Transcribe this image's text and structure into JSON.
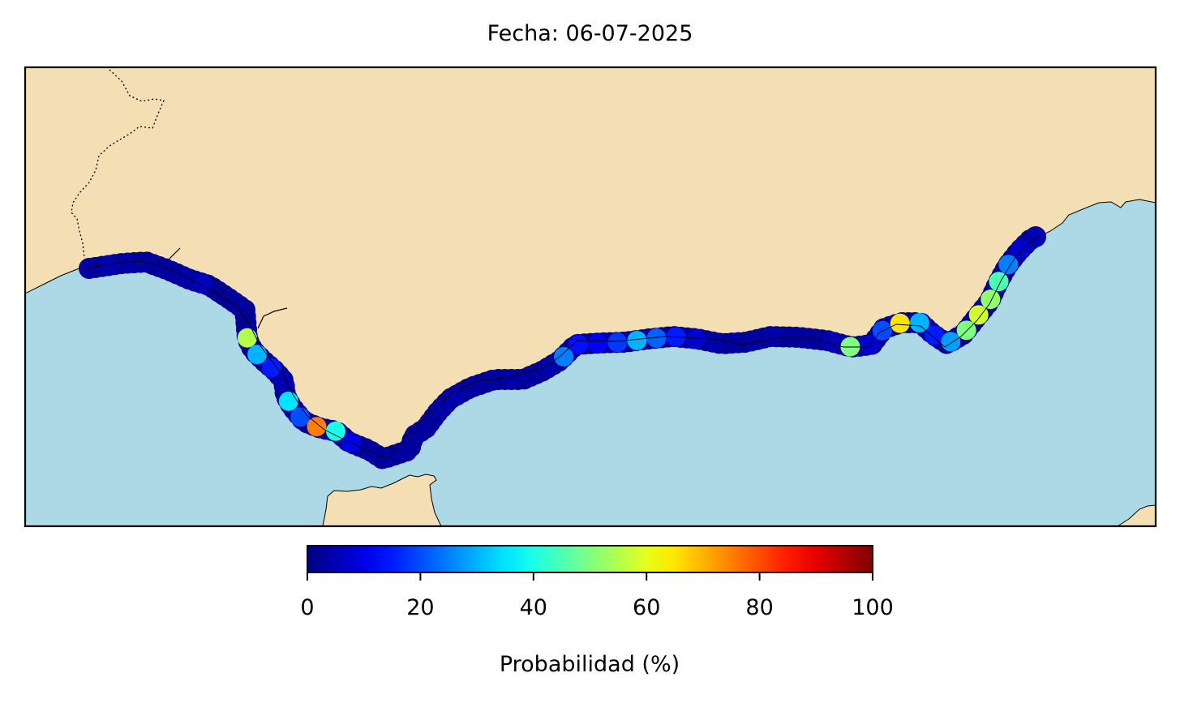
{
  "title": "Fecha: 06-07-2025",
  "colors": {
    "land": "#f4deb4",
    "sea": "#add8e6",
    "coastline": "#000000",
    "border": "#000000"
  },
  "colorbar": {
    "label": "Probabilidad (%)",
    "colormap": "jet",
    "min": 0,
    "max": 100,
    "ticks": [
      "0",
      "20",
      "40",
      "60",
      "80",
      "100"
    ]
  },
  "points": [
    {
      "id": "p1",
      "p": 3
    },
    {
      "id": "p2",
      "p": 5
    },
    {
      "id": "p3",
      "p": 4
    },
    {
      "id": "p4",
      "p": 3
    },
    {
      "id": "p5",
      "p": 3
    },
    {
      "id": "p6",
      "p": 4
    },
    {
      "id": "p7",
      "p": 6
    },
    {
      "id": "p8",
      "p": 2
    },
    {
      "id": "p9",
      "p": 3
    },
    {
      "id": "p10",
      "p": 2
    },
    {
      "id": "p11",
      "p": 55
    },
    {
      "id": "p12",
      "p": 30
    },
    {
      "id": "p13",
      "p": 15
    },
    {
      "id": "p14",
      "p": 5
    },
    {
      "id": "p15",
      "p": 35
    },
    {
      "id": "p16",
      "p": 20
    },
    {
      "id": "p17",
      "p": 75
    },
    {
      "id": "p18",
      "p": 40
    },
    {
      "id": "p19",
      "p": 10
    },
    {
      "id": "p20",
      "p": 3
    },
    {
      "id": "p21",
      "p": 3
    },
    {
      "id": "p22",
      "p": 3
    },
    {
      "id": "p23",
      "p": 3
    },
    {
      "id": "p24",
      "p": 3
    },
    {
      "id": "p25",
      "p": 4
    },
    {
      "id": "p26",
      "p": 4
    },
    {
      "id": "p27",
      "p": 3
    },
    {
      "id": "p28",
      "p": 3
    },
    {
      "id": "p29",
      "p": 4
    },
    {
      "id": "p30",
      "p": 3
    },
    {
      "id": "p31",
      "p": 4
    },
    {
      "id": "p32",
      "p": 25
    },
    {
      "id": "p33",
      "p": 14
    },
    {
      "id": "p34",
      "p": 12
    },
    {
      "id": "p35",
      "p": 18
    },
    {
      "id": "p36",
      "p": 30
    },
    {
      "id": "p37",
      "p": 22
    },
    {
      "id": "p38",
      "p": 15
    },
    {
      "id": "p39",
      "p": 8
    },
    {
      "id": "p40",
      "p": 4
    },
    {
      "id": "p41",
      "p": 3
    },
    {
      "id": "p42",
      "p": 3
    },
    {
      "id": "p43",
      "p": 4
    },
    {
      "id": "p44",
      "p": 3
    },
    {
      "id": "p45",
      "p": 3
    },
    {
      "id": "p46",
      "p": 5
    },
    {
      "id": "p47",
      "p": 50
    },
    {
      "id": "p48",
      "p": 8
    },
    {
      "id": "p49",
      "p": 20
    },
    {
      "id": "p50",
      "p": 65
    },
    {
      "id": "p51",
      "p": 30
    },
    {
      "id": "p52",
      "p": 15
    },
    {
      "id": "p53",
      "p": 28
    },
    {
      "id": "p54",
      "p": 50
    },
    {
      "id": "p55",
      "p": 58
    },
    {
      "id": "p56",
      "p": 52
    },
    {
      "id": "p57",
      "p": 45
    },
    {
      "id": "p58",
      "p": 25
    },
    {
      "id": "p59",
      "p": 8
    },
    {
      "id": "p60",
      "p": 5
    }
  ]
}
